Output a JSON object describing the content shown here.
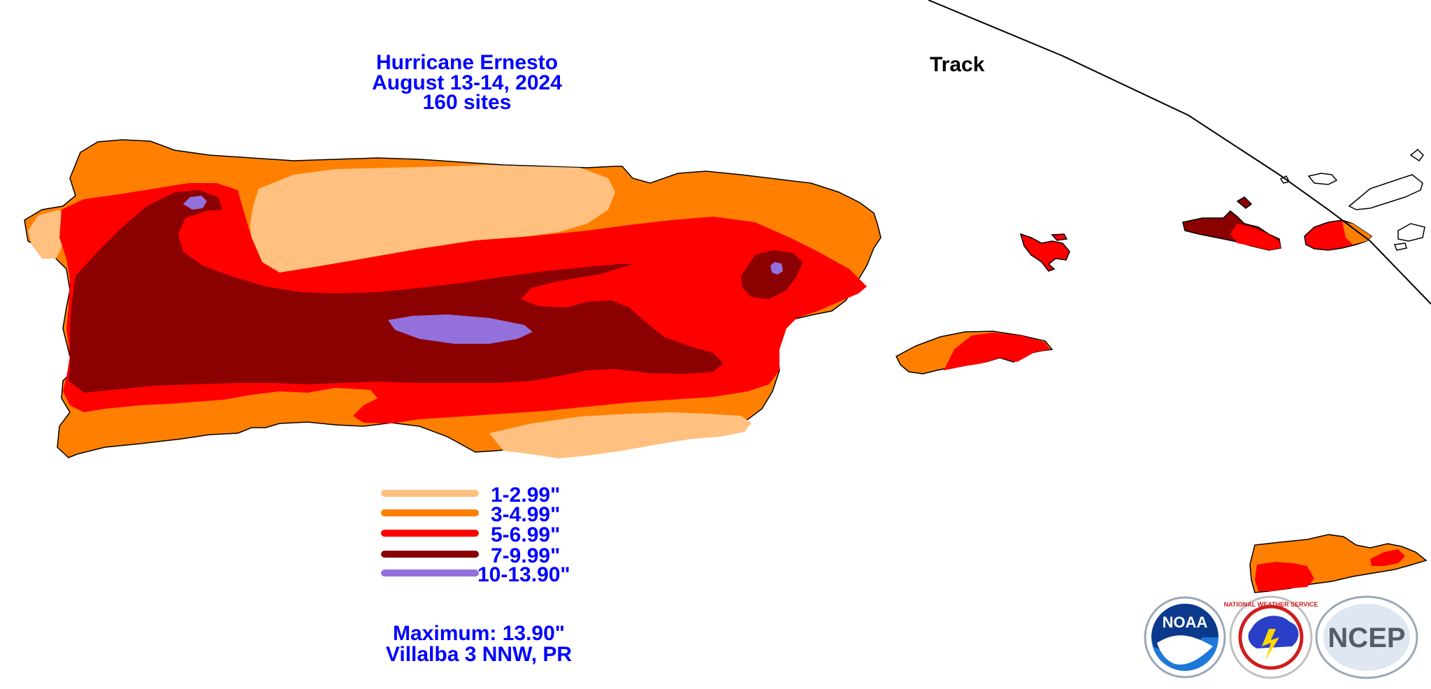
{
  "title": {
    "line1": "Hurricane Ernesto",
    "line2": "August 13-14, 2024",
    "line3": "160 sites"
  },
  "track_label": "Track",
  "legend": [
    {
      "label": "1-2.99\"",
      "color": "#ffc080"
    },
    {
      "label": "3-4.99\"",
      "color": "#ff8000"
    },
    {
      "label": "5-6.99\"",
      "color": "#ff0000"
    },
    {
      "label": "7-9.99\"",
      "color": "#8b0000"
    },
    {
      "label": "10-13.90\"",
      "color": "#9370db"
    }
  ],
  "maximum": {
    "line1": "Maximum: 13.90\"",
    "line2": "Villalba 3 NNW, PR"
  },
  "logos": [
    {
      "name": "noaa-logo",
      "text": "NOAA"
    },
    {
      "name": "nws-logo",
      "text": "NATIONAL WEATHER SERVICE"
    },
    {
      "name": "ncep-logo",
      "text": "NCEP"
    }
  ]
}
